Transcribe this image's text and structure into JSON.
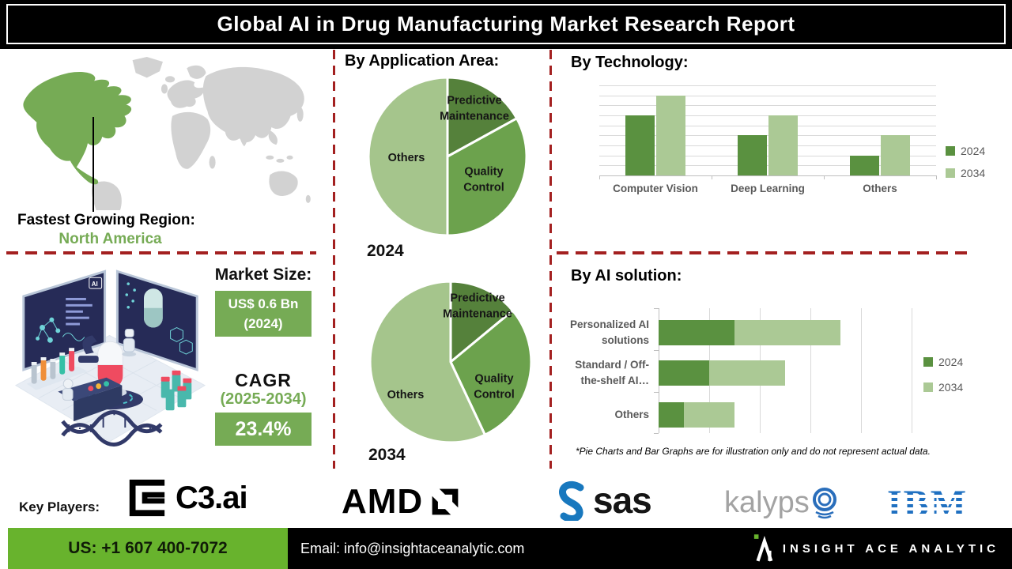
{
  "title": "Global AI in Drug Manufacturing Market Research Report",
  "sections": {
    "application": "By Application Area:",
    "technology": "By Technology:",
    "ai_solution": "By AI solution:"
  },
  "region": {
    "heading": "Fastest Growing Region:",
    "value": "North America"
  },
  "market": {
    "size_label": "Market Size:",
    "size_value": "US$ 0.6 Bn",
    "size_year": "(2024)",
    "cagr_label": "CAGR",
    "cagr_period": "(2025-2034)",
    "cagr_value": "23.4%"
  },
  "footnote": "*Pie Charts and Bar Graphs are for illustration only and do not represent actual data.",
  "key_players": {
    "label": "Key Players:",
    "companies": [
      "C3.ai",
      "AMD",
      "SAS",
      "Kalypso",
      "IBM"
    ]
  },
  "logo_text": {
    "c3": "C3.ai",
    "amd": "AMD",
    "sas": "sas",
    "kalypso_prefix": "kalyps",
    "ibm": "IBM"
  },
  "footer": {
    "phone": "US: +1 607 400-7072",
    "email": "Email: info@insightaceanalytic.com",
    "brand": "INSIGHT ACE ANALYTIC"
  },
  "colors": {
    "accent-green": "#76ab55",
    "footer-green": "#68b32d",
    "dash-red": "#a32020",
    "map-gray": "#d2d2d2",
    "pie-dark": "#55813b",
    "pie-mid": "#6ca24d",
    "pie-light": "#a5c58c",
    "bar-2024": "#5a9140",
    "bar-2034": "#abc995",
    "ibm-blue": "#1f70c1",
    "sas-blue": "#1878be",
    "kalypso-blue": "#2a6ebb",
    "illustration-navy": "#262b57"
  },
  "chart_data": [
    {
      "type": "pie",
      "title": "2024",
      "section": "By Application Area:",
      "slices": [
        {
          "label": "Predictive\nMaintenance",
          "value": 17,
          "color": "#55813b"
        },
        {
          "label": "Quality\nControl",
          "value": 33,
          "color": "#6ca24d"
        },
        {
          "label": "Others",
          "value": 50,
          "color": "#a5c58c"
        }
      ],
      "legend_position": "none"
    },
    {
      "type": "pie",
      "title": "2034",
      "section": "By Application Area:",
      "slices": [
        {
          "label": "Predictive\nMaintenance",
          "value": 14,
          "color": "#55813b"
        },
        {
          "label": "Quality\nControl",
          "value": 29,
          "color": "#6ca24d"
        },
        {
          "label": "Others",
          "value": 57,
          "color": "#a5c58c"
        }
      ],
      "legend_position": "none"
    },
    {
      "type": "bar",
      "title": "By Technology:",
      "categories": [
        "Computer Vision",
        "Deep Learning",
        "Others"
      ],
      "series": [
        {
          "name": "2024",
          "color": "#5a9140",
          "values": [
            3,
            2,
            1
          ]
        },
        {
          "name": "2034",
          "color": "#abc995",
          "values": [
            4,
            3,
            2
          ]
        }
      ],
      "ylim": [
        0,
        4.5
      ],
      "grid": true,
      "legend_position": "right",
      "note": "relative illustrative values, y-axis unlabeled"
    },
    {
      "type": "bar",
      "orientation": "horizontal",
      "stacked": true,
      "title": "By AI solution:",
      "categories": [
        "Personalized AI\nsolutions",
        "Standard / Off-\nthe-shelf AI…",
        "Others"
      ],
      "series": [
        {
          "name": "2024",
          "color": "#5a9140",
          "values": [
            1.5,
            1,
            0.5
          ]
        },
        {
          "name": "2034",
          "color": "#abc995",
          "values": [
            2.1,
            1.5,
            1
          ]
        }
      ],
      "xlim": [
        0,
        5
      ],
      "grid": true,
      "legend_position": "right",
      "note": "relative illustrative values, x-axis unlabeled"
    }
  ]
}
